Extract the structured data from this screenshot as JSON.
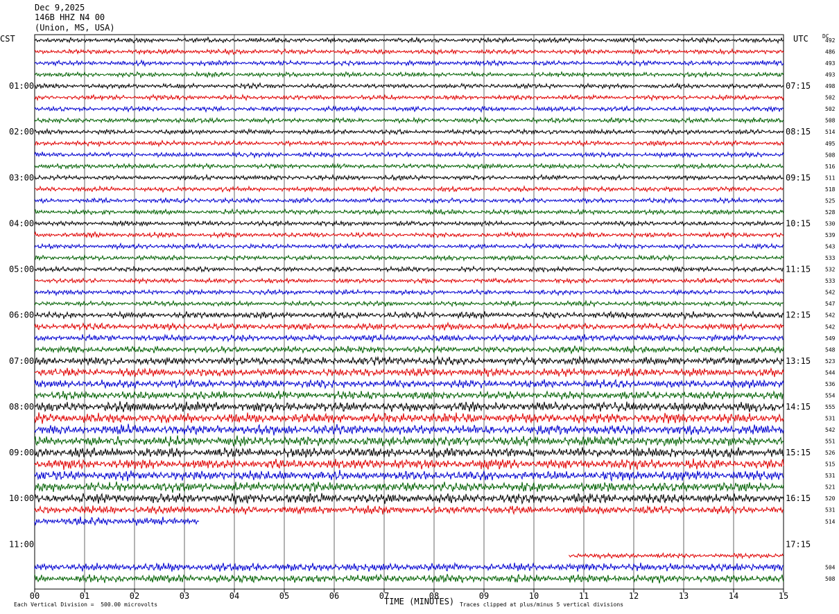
{
  "header": {
    "date": "Dec 9,2025",
    "station": "146B HHZ N4 00",
    "location": "(Union, MS, USA)"
  },
  "axis": {
    "left_tz": "CST",
    "right_tz": "UTC",
    "dc_label": "DC",
    "x_title": "TIME (MINUTES)",
    "x_ticks": [
      "00",
      "01",
      "02",
      "03",
      "04",
      "05",
      "06",
      "07",
      "08",
      "09",
      "10",
      "11",
      "12",
      "13",
      "14",
      "15"
    ]
  },
  "footer": {
    "scale_note": "Each Vertical Division =  500.00 microvolts",
    "clip_note": "Traces clipped at plus/minus 5 vertical divisions"
  },
  "colors": {
    "black": "#000000",
    "red": "#e00000",
    "blue": "#0000d0",
    "green": "#006000",
    "grid": "#000000"
  },
  "chart_data": {
    "type": "line",
    "title": "",
    "xlabel": "TIME (MINUTES)",
    "xlim": [
      0,
      15
    ],
    "row_minutes": 15,
    "color_cycle": [
      "black",
      "red",
      "blue",
      "green"
    ],
    "left_hour_labels": [
      "01:00",
      "02:00",
      "03:00",
      "04:00",
      "05:00",
      "06:00",
      "07:00",
      "08:00",
      "09:00",
      "10:00",
      "11:00"
    ],
    "right_hour_labels": [
      "07:15",
      "08:15",
      "09:15",
      "10:15",
      "11:15",
      "12:15",
      "13:15",
      "14:15",
      "15:15",
      "16:15",
      "17:15"
    ],
    "rows": [
      {
        "dc": "492",
        "start": 0,
        "end": 15,
        "amp": 3
      },
      {
        "dc": "486",
        "start": 0,
        "end": 15,
        "amp": 3
      },
      {
        "dc": "493",
        "start": 0,
        "end": 15,
        "amp": 3
      },
      {
        "dc": "493",
        "start": 0,
        "end": 15,
        "amp": 3
      },
      {
        "dc": "498",
        "start": 0,
        "end": 15,
        "amp": 3
      },
      {
        "dc": "502",
        "start": 0,
        "end": 15,
        "amp": 3
      },
      {
        "dc": "502",
        "start": 0,
        "end": 15,
        "amp": 3
      },
      {
        "dc": "508",
        "start": 0,
        "end": 15,
        "amp": 3
      },
      {
        "dc": "514",
        "start": 0,
        "end": 15,
        "amp": 3
      },
      {
        "dc": "495",
        "start": 0,
        "end": 15,
        "amp": 3
      },
      {
        "dc": "508",
        "start": 0,
        "end": 15,
        "amp": 3
      },
      {
        "dc": "516",
        "start": 0,
        "end": 15,
        "amp": 3
      },
      {
        "dc": "511",
        "start": 0,
        "end": 15,
        "amp": 3
      },
      {
        "dc": "518",
        "start": 0,
        "end": 15,
        "amp": 3
      },
      {
        "dc": "525",
        "start": 0,
        "end": 15,
        "amp": 3
      },
      {
        "dc": "528",
        "start": 0,
        "end": 15,
        "amp": 3
      },
      {
        "dc": "530",
        "start": 0,
        "end": 15,
        "amp": 3
      },
      {
        "dc": "539",
        "start": 0,
        "end": 15,
        "amp": 3
      },
      {
        "dc": "543",
        "start": 0,
        "end": 15,
        "amp": 3
      },
      {
        "dc": "533",
        "start": 0,
        "end": 15,
        "amp": 3
      },
      {
        "dc": "532",
        "start": 0,
        "end": 15,
        "amp": 3
      },
      {
        "dc": "533",
        "start": 0,
        "end": 15,
        "amp": 3
      },
      {
        "dc": "542",
        "start": 0,
        "end": 15,
        "amp": 3
      },
      {
        "dc": "547",
        "start": 0,
        "end": 15,
        "amp": 3
      },
      {
        "dc": "542",
        "start": 0,
        "end": 15,
        "amp": 4
      },
      {
        "dc": "542",
        "start": 0,
        "end": 15,
        "amp": 4
      },
      {
        "dc": "549",
        "start": 0,
        "end": 15,
        "amp": 4
      },
      {
        "dc": "548",
        "start": 0,
        "end": 15,
        "amp": 4
      },
      {
        "dc": "523",
        "start": 0,
        "end": 15,
        "amp": 5
      },
      {
        "dc": "544",
        "start": 0,
        "end": 15,
        "amp": 5
      },
      {
        "dc": "536",
        "start": 0,
        "end": 15,
        "amp": 5
      },
      {
        "dc": "554",
        "start": 0,
        "end": 15,
        "amp": 5
      },
      {
        "dc": "555",
        "start": 0,
        "end": 15,
        "amp": 6
      },
      {
        "dc": "531",
        "start": 0,
        "end": 15,
        "amp": 6
      },
      {
        "dc": "542",
        "start": 0,
        "end": 15,
        "amp": 6
      },
      {
        "dc": "551",
        "start": 0,
        "end": 15,
        "amp": 6
      },
      {
        "dc": "526",
        "start": 0,
        "end": 15,
        "amp": 6
      },
      {
        "dc": "515",
        "start": 0,
        "end": 15,
        "amp": 6
      },
      {
        "dc": "531",
        "start": 0,
        "end": 15,
        "amp": 6
      },
      {
        "dc": "521",
        "start": 0,
        "end": 15,
        "amp": 6
      },
      {
        "dc": "520",
        "start": 0,
        "end": 15,
        "amp": 6
      },
      {
        "dc": "531",
        "start": 0,
        "end": 15,
        "amp": 5
      },
      {
        "dc": "514",
        "start": 0,
        "end": 3.3,
        "amp": 5
      },
      {
        "dc": "",
        "start": 0,
        "end": 0,
        "amp": 0
      },
      {
        "dc": "",
        "start": 0,
        "end": 0,
        "amp": 0
      },
      {
        "dc": "",
        "start": 10.7,
        "end": 15,
        "amp": 3
      },
      {
        "dc": "504",
        "start": 0,
        "end": 15,
        "amp": 5
      },
      {
        "dc": "508",
        "start": 0,
        "end": 15,
        "amp": 5
      }
    ]
  }
}
